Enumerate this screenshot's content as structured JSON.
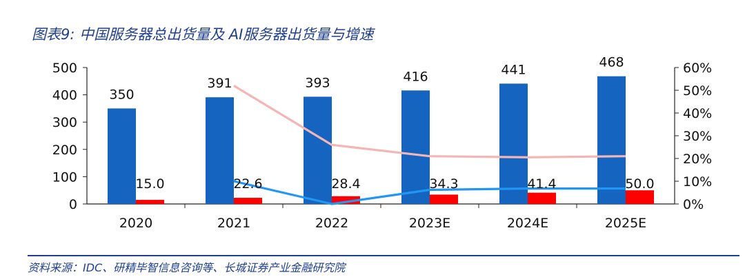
{
  "figure": {
    "title": "图表9:  中国服务器总出货量及 AI服务器出货量与增速",
    "source": "资料来源：IDC、研精毕智信息咨询等、长城证券产业金融研究院"
  },
  "colors": {
    "total_bar": "#1565c0",
    "ai_bar": "#ff0000",
    "total_growth_line": "#f4b5b5",
    "ai_growth_line": "#2196f3",
    "axis": "#222222",
    "title_blue": "#1f3f8f"
  },
  "chart_data": {
    "type": "bar",
    "categories": [
      "2020",
      "2021",
      "2022",
      "2023E",
      "2024E",
      "2025E"
    ],
    "series": [
      {
        "kind": "bar",
        "axis": "left",
        "values": [
          350,
          391,
          393,
          416,
          441,
          468
        ],
        "labels": [
          "350",
          "391",
          "393",
          "416",
          "441",
          "468"
        ]
      },
      {
        "kind": "bar",
        "axis": "left",
        "values": [
          15.0,
          22.6,
          28.4,
          34.3,
          41.4,
          50.0
        ],
        "labels": [
          "15.0",
          "22.6",
          "28.4",
          "34.3",
          "41.4",
          "50.0"
        ]
      },
      {
        "kind": "line",
        "axis": "right",
        "values": [
          null,
          0.52,
          0.26,
          0.21,
          0.205,
          0.21
        ]
      },
      {
        "kind": "line",
        "axis": "right",
        "values": [
          null,
          0.1,
          0.0,
          0.062,
          0.068,
          0.068
        ]
      }
    ],
    "y_left": {
      "min": 0,
      "max": 500,
      "ticks": [
        "0",
        "100",
        "200",
        "300",
        "400",
        "500"
      ]
    },
    "y_right": {
      "min": 0,
      "max": 0.6,
      "ticks": [
        "0%",
        "10%",
        "20%",
        "30%",
        "40%",
        "50%",
        "60%"
      ]
    },
    "grid": false,
    "legend": "none"
  }
}
